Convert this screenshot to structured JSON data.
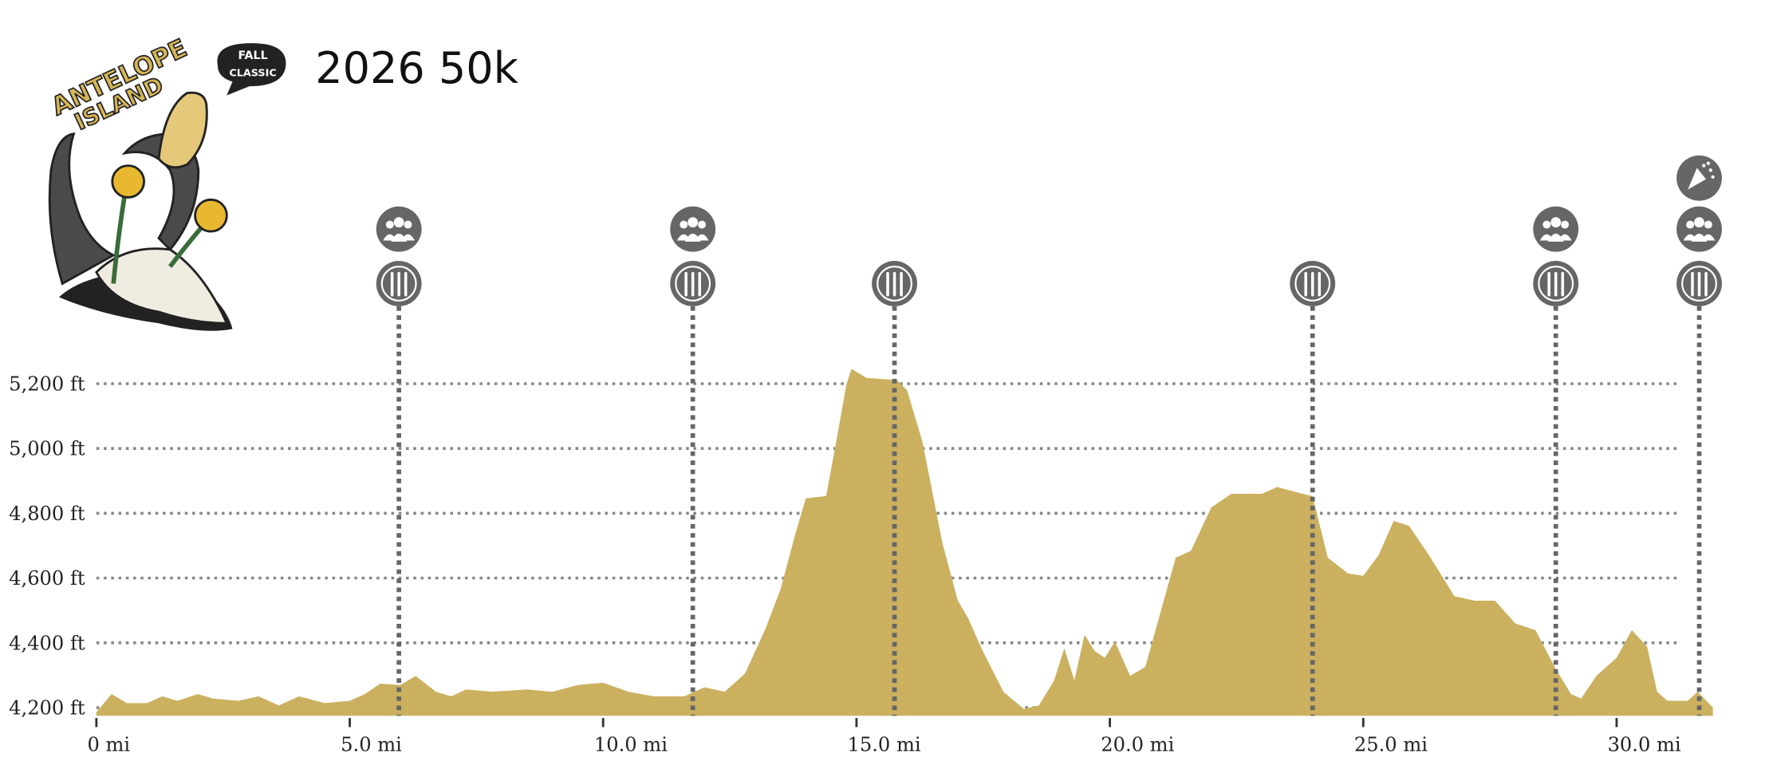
{
  "logo": {
    "line1": "ANTELOPE",
    "line2": "ISLAND",
    "bubble1": "FALL",
    "bubble2": "CLASSIC"
  },
  "title": "2026 50k",
  "chart_data": {
    "type": "area",
    "color": "#cbb060",
    "grid": true,
    "x": [
      0,
      0.3,
      0.6,
      1.0,
      1.3,
      1.6,
      2.0,
      2.3,
      2.8,
      3.2,
      3.6,
      4.0,
      4.5,
      5.0,
      5.3,
      5.6,
      6.0,
      6.3,
      6.7,
      7.0,
      7.3,
      7.8,
      8.5,
      9.0,
      9.5,
      10.0,
      10.5,
      11.0,
      11.6,
      12.0,
      12.4,
      12.8,
      13.2,
      13.5,
      13.8,
      14.0,
      14.4,
      14.6,
      14.8,
      14.9,
      15.2,
      15.8,
      16.0,
      16.3,
      16.7,
      17.0,
      17.2,
      17.5,
      17.9,
      18.3,
      18.6,
      18.9,
      19.1,
      19.3,
      19.5,
      19.7,
      19.9,
      20.1,
      20.4,
      20.7,
      21.0,
      21.3,
      21.6,
      22.0,
      22.4,
      23.0,
      23.3,
      23.8,
      24.0,
      24.3,
      24.7,
      25.0,
      25.3,
      25.6,
      25.9,
      26.3,
      26.8,
      27.2,
      27.6,
      28.0,
      28.4,
      28.8,
      29.1,
      29.3,
      29.6,
      30.0,
      30.3,
      30.6,
      30.8,
      31.0,
      31.4,
      31.6,
      31.9
    ],
    "values": [
      4186,
      4242,
      4214,
      4214,
      4235,
      4221,
      4242,
      4228,
      4221,
      4235,
      4207,
      4235,
      4214,
      4221,
      4242,
      4274,
      4270,
      4298,
      4249,
      4235,
      4256,
      4249,
      4256,
      4249,
      4270,
      4277,
      4249,
      4235,
      4235,
      4263,
      4249,
      4305,
      4442,
      4565,
      4740,
      4846,
      4853,
      5021,
      5197,
      5246,
      5218,
      5211,
      5179,
      5021,
      4705,
      4530,
      4477,
      4372,
      4249,
      4196,
      4207,
      4284,
      4383,
      4284,
      4425,
      4375,
      4354,
      4404,
      4298,
      4326,
      4495,
      4663,
      4684,
      4818,
      4860,
      4860,
      4881,
      4860,
      4853,
      4663,
      4614,
      4607,
      4670,
      4776,
      4762,
      4670,
      4544,
      4530,
      4530,
      4460,
      4439,
      4319,
      4242,
      4228,
      4298,
      4354,
      4439,
      4389,
      4249,
      4221,
      4221,
      4249,
      4200
    ],
    "xlim": [
      0,
      32
    ],
    "ylim": [
      4175,
      5250
    ],
    "xticks": [
      {
        "value": 0,
        "label": "0 mi"
      },
      {
        "value": 5,
        "label": "5.0 mi"
      },
      {
        "value": 10,
        "label": "10.0 mi"
      },
      {
        "value": 15,
        "label": "15.0 mi"
      },
      {
        "value": 20,
        "label": "20.0 mi"
      },
      {
        "value": 25,
        "label": "25.0 mi"
      },
      {
        "value": 30,
        "label": "30.0 mi"
      }
    ],
    "yticks": [
      {
        "value": 4200,
        "label": "4,200 ft"
      },
      {
        "value": 4400,
        "label": "4,400 ft"
      },
      {
        "value": 4600,
        "label": "4,600 ft"
      },
      {
        "value": 4800,
        "label": "4,800 ft"
      },
      {
        "value": 5000,
        "label": "5,000 ft"
      },
      {
        "value": 5200,
        "label": "5,200 ft"
      }
    ],
    "food_miles": [
      5.97,
      11.77,
      15.75,
      24.0,
      28.8,
      31.63
    ],
    "crew_miles": [
      5.97,
      11.77,
      28.8,
      31.63
    ],
    "finish_mile": 31.63
  }
}
